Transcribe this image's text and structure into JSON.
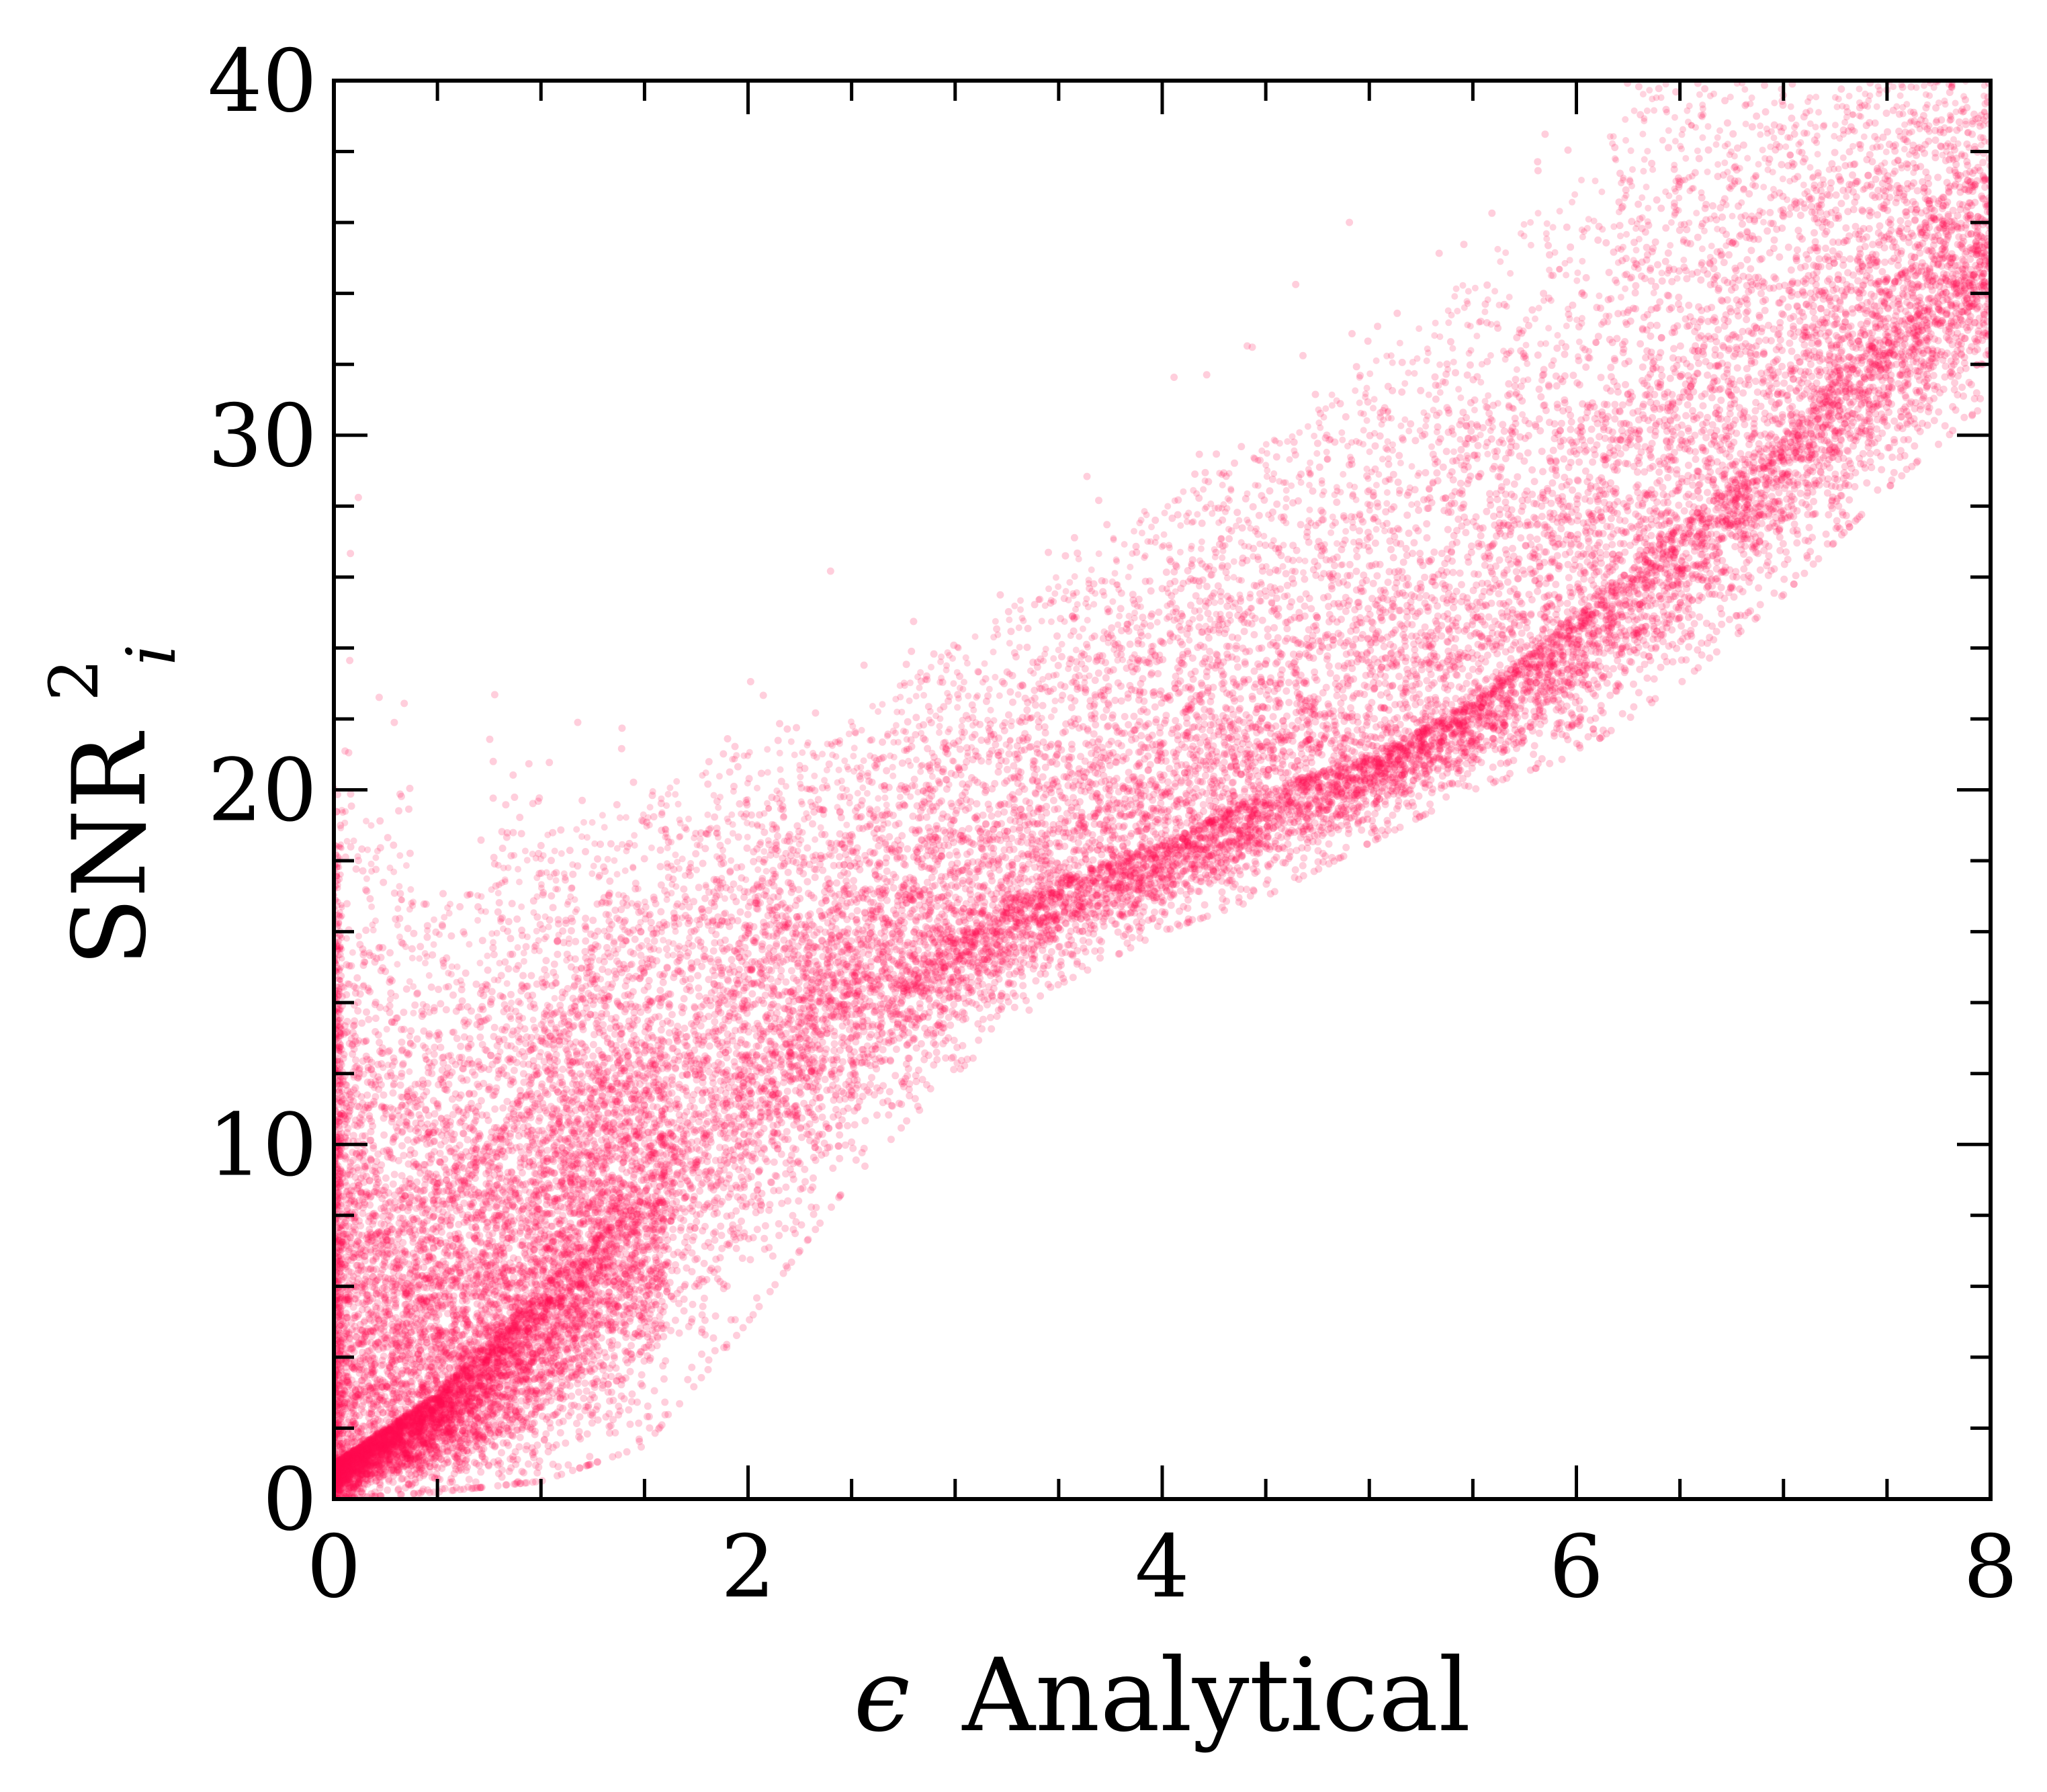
{
  "chart_data": {
    "type": "scatter",
    "xlabel": {
      "symbol": "ϵ",
      "text": "Analytical"
    },
    "ylabel": {
      "base": "SNR",
      "superscript": "2",
      "subscript": "i"
    },
    "xlim": [
      0,
      8
    ],
    "ylim": [
      0,
      40
    ],
    "xticks": [
      0,
      2,
      4,
      6,
      8
    ],
    "xtick_labels": [
      "0",
      "2",
      "4",
      "6",
      "8"
    ],
    "yticks": [
      0,
      10,
      20,
      30,
      40
    ],
    "ytick_labels": [
      "0",
      "10",
      "20",
      "30",
      "40"
    ],
    "x_minor_step": 0.5,
    "y_minor_step": 2,
    "tick_direction": "in",
    "ticks_on_all_sides": true,
    "grid": false,
    "legend": "none",
    "point_color": "#ff0a4f",
    "point_alpha": 0.2,
    "series_description": "dense point cloud; band centre rises from about 2 at x=0 to about 35 at x=8",
    "band_profile": [
      {
        "x": 0.0,
        "y_low": 0.0,
        "y_center": 1.0,
        "y_high": 18.0
      },
      {
        "x": 0.5,
        "y_low": 0.2,
        "y_center": 3.0,
        "y_high": 15.0
      },
      {
        "x": 1.0,
        "y_low": 0.5,
        "y_center": 6.0,
        "y_high": 17.0
      },
      {
        "x": 1.5,
        "y_low": 1.5,
        "y_center": 9.0,
        "y_high": 18.5
      },
      {
        "x": 2.0,
        "y_low": 5.0,
        "y_center": 12.5,
        "y_high": 20.0
      },
      {
        "x": 2.5,
        "y_low": 9.0,
        "y_center": 14.5,
        "y_high": 21.0
      },
      {
        "x": 3.0,
        "y_low": 12.0,
        "y_center": 16.0,
        "y_high": 23.0
      },
      {
        "x": 3.5,
        "y_low": 14.5,
        "y_center": 17.5,
        "y_high": 25.0
      },
      {
        "x": 4.0,
        "y_low": 16.0,
        "y_center": 18.5,
        "y_high": 27.0
      },
      {
        "x": 4.5,
        "y_low": 17.0,
        "y_center": 20.0,
        "y_high": 28.5
      },
      {
        "x": 5.0,
        "y_low": 18.5,
        "y_center": 21.0,
        "y_high": 30.5
      },
      {
        "x": 5.5,
        "y_low": 20.0,
        "y_center": 22.5,
        "y_high": 33.0
      },
      {
        "x": 6.0,
        "y_low": 21.0,
        "y_center": 25.0,
        "y_high": 36.0
      },
      {
        "x": 6.5,
        "y_low": 23.0,
        "y_center": 27.5,
        "y_high": 39.0
      },
      {
        "x": 7.0,
        "y_low": 25.5,
        "y_center": 30.0,
        "y_high": 40.0
      },
      {
        "x": 7.5,
        "y_low": 28.5,
        "y_center": 33.0,
        "y_high": 40.0
      },
      {
        "x": 8.0,
        "y_low": 31.0,
        "y_center": 35.0,
        "y_high": 40.0
      }
    ]
  }
}
